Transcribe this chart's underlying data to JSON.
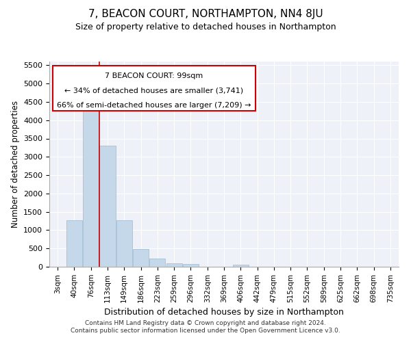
{
  "title": "7, BEACON COURT, NORTHAMPTON, NN4 8JU",
  "subtitle": "Size of property relative to detached houses in Northampton",
  "xlabel": "Distribution of detached houses by size in Northampton",
  "ylabel": "Number of detached properties",
  "bar_color": "#c5d8ea",
  "bar_edge_color": "#9ab8d0",
  "background_color": "#ffffff",
  "plot_bg_color": "#eef2f8",
  "grid_color": "#ffffff",
  "annotation_box_color": "#cc0000",
  "annotation_text_line1": "7 BEACON COURT: 99sqm",
  "annotation_text_line2": "← 34% of detached houses are smaller (3,741)",
  "annotation_text_line3": "66% of semi-detached houses are larger (7,209) →",
  "footer_line1": "Contains HM Land Registry data © Crown copyright and database right 2024.",
  "footer_line2": "Contains public sector information licensed under the Open Government Licence v3.0.",
  "categories": [
    "3sqm",
    "40sqm",
    "76sqm",
    "113sqm",
    "149sqm",
    "186sqm",
    "223sqm",
    "259sqm",
    "296sqm",
    "332sqm",
    "369sqm",
    "406sqm",
    "442sqm",
    "479sqm",
    "515sqm",
    "552sqm",
    "589sqm",
    "625sqm",
    "662sqm",
    "698sqm",
    "735sqm"
  ],
  "values": [
    0,
    1270,
    4350,
    3300,
    1270,
    480,
    230,
    90,
    70,
    0,
    0,
    50,
    0,
    0,
    0,
    0,
    0,
    0,
    0,
    0,
    0
  ],
  "ylim": [
    0,
    5600
  ],
  "yticks": [
    0,
    500,
    1000,
    1500,
    2000,
    2500,
    3000,
    3500,
    4000,
    4500,
    5000,
    5500
  ],
  "red_line_index": 2.5
}
